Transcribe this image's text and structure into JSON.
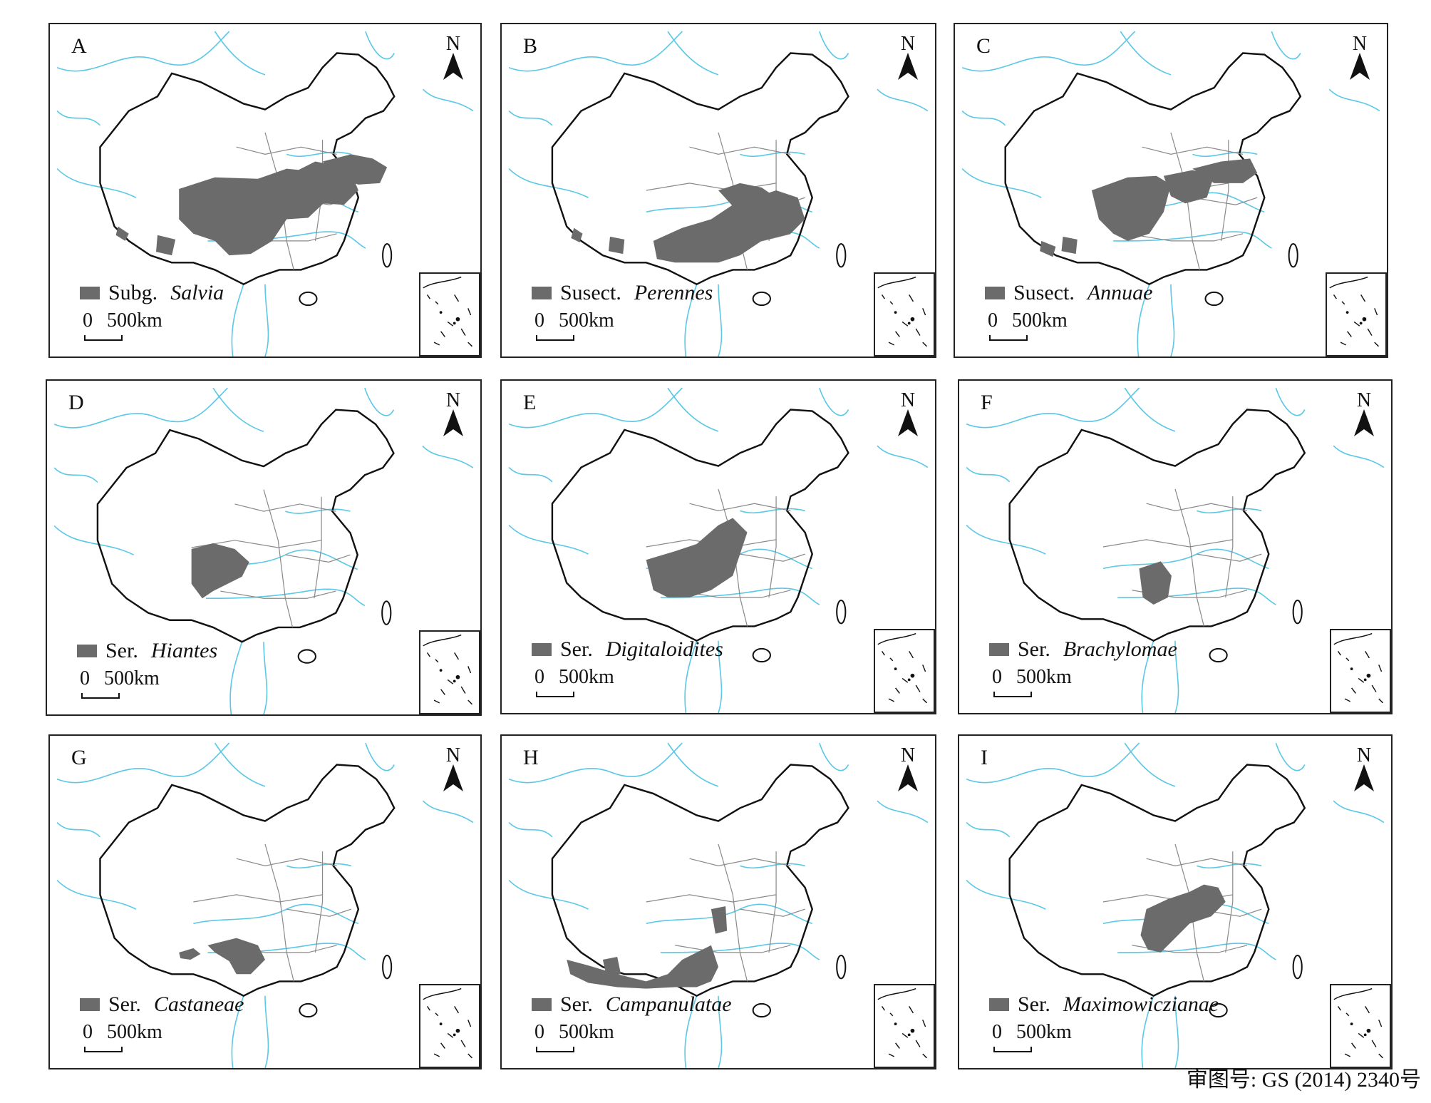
{
  "panels": [
    {
      "letter": "A",
      "rank": "Subg.",
      "taxon": "Salvia",
      "id": "A"
    },
    {
      "letter": "B",
      "rank": "Susect.",
      "taxon": "Perennes",
      "id": "B"
    },
    {
      "letter": "C",
      "rank": "Susect.",
      "taxon": "Annuae",
      "id": "C"
    },
    {
      "letter": "D",
      "rank": "Ser.",
      "taxon": "Hiantes",
      "id": "D"
    },
    {
      "letter": "E",
      "rank": "Ser.",
      "taxon": "Digitaloidites",
      "id": "E"
    },
    {
      "letter": "F",
      "rank": "Ser.",
      "taxon": "Brachylomae",
      "id": "F"
    },
    {
      "letter": "G",
      "rank": "Ser.",
      "taxon": "Castaneae",
      "id": "G"
    },
    {
      "letter": "H",
      "rank": "Ser.",
      "taxon": "Campanulatae",
      "id": "H"
    },
    {
      "letter": "I",
      "rank": "Ser.",
      "taxon": "Maximowiczianae",
      "id": "I"
    }
  ],
  "north_label": "N",
  "scale": {
    "zero": "0",
    "distance": "500km"
  },
  "approval_text": "审图号: GS (2014) 2340号",
  "colors": {
    "distribution": "#6b6b6b",
    "rivers": "#5bc8e6",
    "borders": "#111111",
    "provinces": "#8a8a8a",
    "frame": "#222222"
  }
}
